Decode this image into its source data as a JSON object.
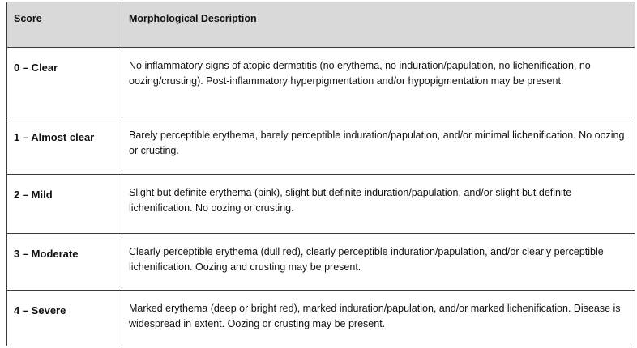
{
  "headers": {
    "score": "Score",
    "description": "Morphological Description"
  },
  "rows": [
    {
      "score": "0 – Clear",
      "description": "No inflammatory signs of atopic dermatitis (no erythema, no induration/papulation, no lichenification, no oozing/crusting). Post-inflammatory hyperpigmentation and/or hypopigmentation may be present."
    },
    {
      "score": "1 – Almost clear",
      "description": "Barely perceptible erythema, barely perceptible induration/papulation, and/or minimal lichenification. No oozing or crusting."
    },
    {
      "score": "2 – Mild",
      "description": "Slight but definite erythema (pink), slight but definite induration/papulation, and/or slight but definite lichenification. No oozing or crusting."
    },
    {
      "score": "3 – Moderate",
      "description": "Clearly perceptible erythema (dull red), clearly perceptible induration/papulation, and/or clearly perceptible lichenification. Oozing and crusting may be present."
    },
    {
      "score": "4 – Severe",
      "description": "Marked erythema (deep or bright red), marked induration/papulation, and/or marked lichenification. Disease is widespread in extent. Oozing or crusting may be present."
    }
  ]
}
